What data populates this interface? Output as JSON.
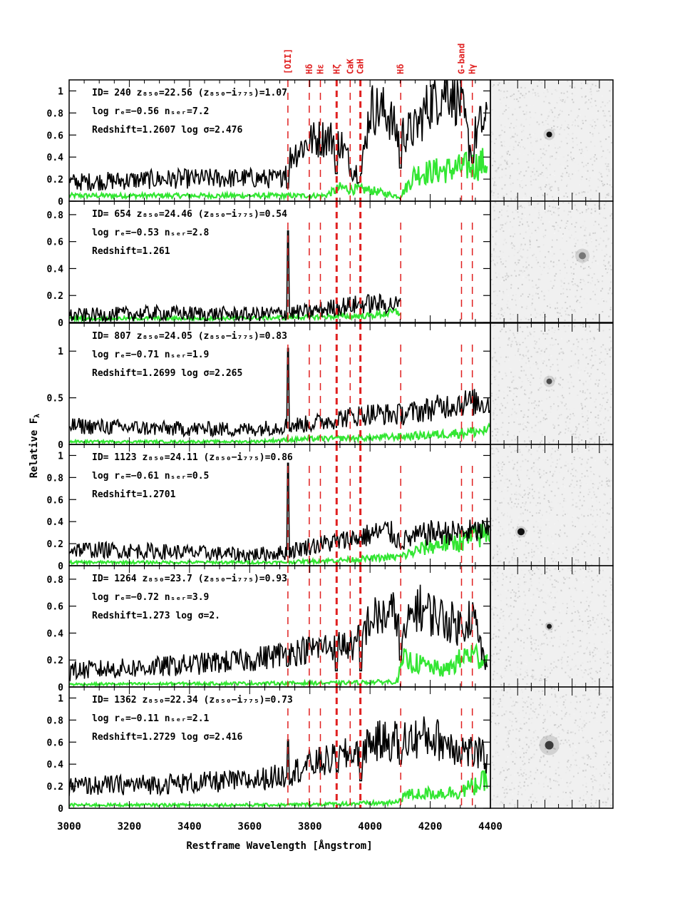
{
  "figure": {
    "ylabel": "Relative F",
    "ylabel_sub": "λ",
    "xlabel": "Restframe Wavelength [Ångstrom]",
    "xlim": [
      3000,
      4400
    ],
    "xticks": [
      "3000",
      "3200",
      "3400",
      "3600",
      "3800",
      "4000",
      "4200",
      "4400"
    ],
    "line_labels": [
      {
        "name": "[OII]",
        "wavelength": 3727
      },
      {
        "name": "Hδ",
        "wavelength": 3798
      },
      {
        "name": "Hε",
        "wavelength": 3835
      },
      {
        "name": "Hζ",
        "wavelength": 3889
      },
      {
        "name": "CaK",
        "wavelength": 3934
      },
      {
        "name": "CaH",
        "wavelength": 3968
      },
      {
        "name": "Hδ",
        "wavelength": 4102
      },
      {
        "name": "G-band",
        "wavelength": 4304
      },
      {
        "name": "Hγ",
        "wavelength": 4340
      }
    ],
    "colors": {
      "spectrum": "#000000",
      "noise": "#33e633",
      "lines": "#e02020",
      "axes": "#000000"
    }
  },
  "chart_data": [
    {
      "type": "line",
      "annotation": [
        "ID= 240   z₈₅₀=22.56  (z₈₅₀−i₇₇₅)=1.07",
        "log rₑ=−0.56   nₛₑᵣ=7.2",
        "Redshift=1.2607   log σ=2.476"
      ],
      "ylim": [
        0,
        1.1
      ],
      "yticks": [
        "0",
        "0.2",
        "0.4",
        "0.6",
        "0.8",
        "1"
      ],
      "x_end": 4390,
      "continuum": [
        [
          3000,
          0.17
        ],
        [
          3300,
          0.2
        ],
        [
          3600,
          0.21
        ],
        [
          3700,
          0.2
        ],
        [
          3740,
          0.42
        ],
        [
          3800,
          0.55
        ],
        [
          3850,
          0.58
        ],
        [
          3900,
          0.55
        ],
        [
          3940,
          0.3
        ],
        [
          3970,
          0.25
        ],
        [
          4000,
          0.85
        ],
        [
          4060,
          0.8
        ],
        [
          4090,
          0.6
        ],
        [
          4150,
          0.65
        ],
        [
          4200,
          0.9
        ],
        [
          4260,
          1.05
        ],
        [
          4300,
          0.9
        ],
        [
          4330,
          0.5
        ],
        [
          4370,
          0.7
        ]
      ],
      "emission": [],
      "absorption": [
        [
          3727,
          0.12
        ],
        [
          3889,
          0.25
        ],
        [
          3934,
          0.3
        ],
        [
          3968,
          0.25
        ],
        [
          4102,
          0.3
        ],
        [
          4340,
          0.35
        ]
      ],
      "noise": [
        [
          3000,
          0.05
        ],
        [
          3500,
          0.05
        ],
        [
          3700,
          0.05
        ],
        [
          3850,
          0.05
        ],
        [
          3900,
          0.12
        ],
        [
          4000,
          0.1
        ],
        [
          4100,
          0.04
        ],
        [
          4150,
          0.25
        ],
        [
          4300,
          0.3
        ],
        [
          4390,
          0.35
        ]
      ]
    },
    {
      "type": "line",
      "annotation": [
        "ID= 654   z₈₅₀=24.46  (z₈₅₀−i₇₇₅)=0.54",
        "log rₑ=−0.53   nₛₑᵣ=2.8",
        "Redshift=1.261"
      ],
      "ylim": [
        0,
        0.9
      ],
      "yticks": [
        "0",
        "0.2",
        "0.4",
        "0.6",
        "0.8"
      ],
      "x_end": 4102,
      "continuum": [
        [
          3000,
          0.05
        ],
        [
          3300,
          0.07
        ],
        [
          3600,
          0.06
        ],
        [
          3720,
          0.07
        ],
        [
          3800,
          0.08
        ],
        [
          3900,
          0.12
        ],
        [
          4000,
          0.14
        ],
        [
          4102,
          0.13
        ]
      ],
      "emission": [
        [
          3727,
          0.68
        ]
      ],
      "absorption": [],
      "noise": [
        [
          3000,
          0.03
        ],
        [
          3500,
          0.03
        ],
        [
          3800,
          0.04
        ],
        [
          4000,
          0.05
        ],
        [
          4102,
          0.08
        ]
      ]
    },
    {
      "type": "line",
      "annotation": [
        "ID= 807   z₈₅₀=24.05  (z₈₅₀−i₇₇₅)=0.83",
        "log rₑ=−0.71   nₛₑᵣ=1.9",
        "Redshift=1.2699   log σ=2.265"
      ],
      "ylim": [
        0,
        1.3
      ],
      "yticks": [
        "0",
        "0.5",
        "1"
      ],
      "x_end": 4400,
      "continuum": [
        [
          3000,
          0.2
        ],
        [
          3300,
          0.17
        ],
        [
          3600,
          0.16
        ],
        [
          3720,
          0.2
        ],
        [
          3800,
          0.22
        ],
        [
          3900,
          0.28
        ],
        [
          4000,
          0.33
        ],
        [
          4100,
          0.32
        ],
        [
          4200,
          0.38
        ],
        [
          4300,
          0.45
        ],
        [
          4400,
          0.45
        ]
      ],
      "emission": [
        [
          3727,
          1.03
        ]
      ],
      "absorption": [],
      "noise": [
        [
          3000,
          0.03
        ],
        [
          3600,
          0.03
        ],
        [
          3800,
          0.06
        ],
        [
          4000,
          0.07
        ],
        [
          4200,
          0.1
        ],
        [
          4400,
          0.15
        ]
      ]
    },
    {
      "type": "line",
      "annotation": [
        "ID= 1123   z₈₅₀=24.11  (z₈₅₀−i₇₇₅)=0.86",
        "log rₑ=−0.61   nₛₑᵣ=0.5",
        "Redshift=1.2701"
      ],
      "ylim": [
        0,
        1.1
      ],
      "yticks": [
        "0",
        "0.2",
        "0.4",
        "0.6",
        "0.8",
        "1"
      ],
      "x_end": 4400,
      "continuum": [
        [
          3000,
          0.15
        ],
        [
          3300,
          0.13
        ],
        [
          3600,
          0.1
        ],
        [
          3720,
          0.12
        ],
        [
          3800,
          0.18
        ],
        [
          3900,
          0.22
        ],
        [
          4000,
          0.28
        ],
        [
          4060,
          0.32
        ],
        [
          4100,
          0.22
        ],
        [
          4200,
          0.3
        ],
        [
          4300,
          0.3
        ],
        [
          4400,
          0.32
        ]
      ],
      "emission": [
        [
          3727,
          0.93
        ]
      ],
      "absorption": [],
      "noise": [
        [
          3000,
          0.03
        ],
        [
          3700,
          0.03
        ],
        [
          3900,
          0.05
        ],
        [
          4100,
          0.08
        ],
        [
          4200,
          0.18
        ],
        [
          4300,
          0.22
        ],
        [
          4400,
          0.3
        ]
      ]
    },
    {
      "type": "line",
      "annotation": [
        "ID= 1264   z₈₅₀=23.7  (z₈₅₀−i₇₇₅)=0.93",
        "log rₑ=−0.72   nₛₑᵣ=3.9",
        "Redshift=1.273   log σ=2."
      ],
      "ylim": [
        0,
        0.9
      ],
      "yticks": [
        "0",
        "0.2",
        "0.4",
        "0.6",
        "0.8"
      ],
      "x_end": 4390,
      "continuum": [
        [
          3000,
          0.12
        ],
        [
          3300,
          0.15
        ],
        [
          3600,
          0.2
        ],
        [
          3720,
          0.25
        ],
        [
          3800,
          0.28
        ],
        [
          3900,
          0.32
        ],
        [
          3950,
          0.3
        ],
        [
          4000,
          0.5
        ],
        [
          4090,
          0.55
        ],
        [
          4102,
          0.3
        ],
        [
          4150,
          0.6
        ],
        [
          4250,
          0.5
        ],
        [
          4300,
          0.45
        ],
        [
          4340,
          0.55
        ],
        [
          4390,
          0.1
        ]
      ],
      "emission": [],
      "absorption": [
        [
          3889,
          0.12
        ],
        [
          3968,
          0.12
        ],
        [
          4102,
          0.2
        ]
      ],
      "noise": [
        [
          3000,
          0.02
        ],
        [
          3900,
          0.03
        ],
        [
          4090,
          0.04
        ],
        [
          4110,
          0.2
        ],
        [
          4250,
          0.12
        ],
        [
          4330,
          0.25
        ],
        [
          4390,
          0.2
        ]
      ]
    },
    {
      "type": "line",
      "annotation": [
        "ID= 1362   z₈₅₀=22.34  (z₈₅₀−i₇₇₅)=0.73",
        "log rₑ=−0.11   nₛₑᵣ=2.1",
        "Redshift=1.2729   log σ=2.416"
      ],
      "ylim": [
        0,
        1.1
      ],
      "yticks": [
        "0",
        "0.2",
        "0.4",
        "0.6",
        "0.8",
        "1"
      ],
      "x_end": 4390,
      "continuum": [
        [
          3000,
          0.2
        ],
        [
          3300,
          0.22
        ],
        [
          3600,
          0.25
        ],
        [
          3720,
          0.3
        ],
        [
          3800,
          0.4
        ],
        [
          3900,
          0.45
        ],
        [
          4000,
          0.6
        ],
        [
          4100,
          0.62
        ],
        [
          4200,
          0.65
        ],
        [
          4300,
          0.55
        ],
        [
          4390,
          0.45
        ]
      ],
      "emission": [
        [
          3727,
          0.62
        ]
      ],
      "absorption": [
        [
          3968,
          0.25
        ],
        [
          4102,
          0.4
        ]
      ],
      "noise": [
        [
          3000,
          0.03
        ],
        [
          3700,
          0.03
        ],
        [
          3900,
          0.04
        ],
        [
          4090,
          0.05
        ],
        [
          4110,
          0.12
        ],
        [
          4300,
          0.15
        ],
        [
          4390,
          0.25
        ]
      ]
    }
  ]
}
